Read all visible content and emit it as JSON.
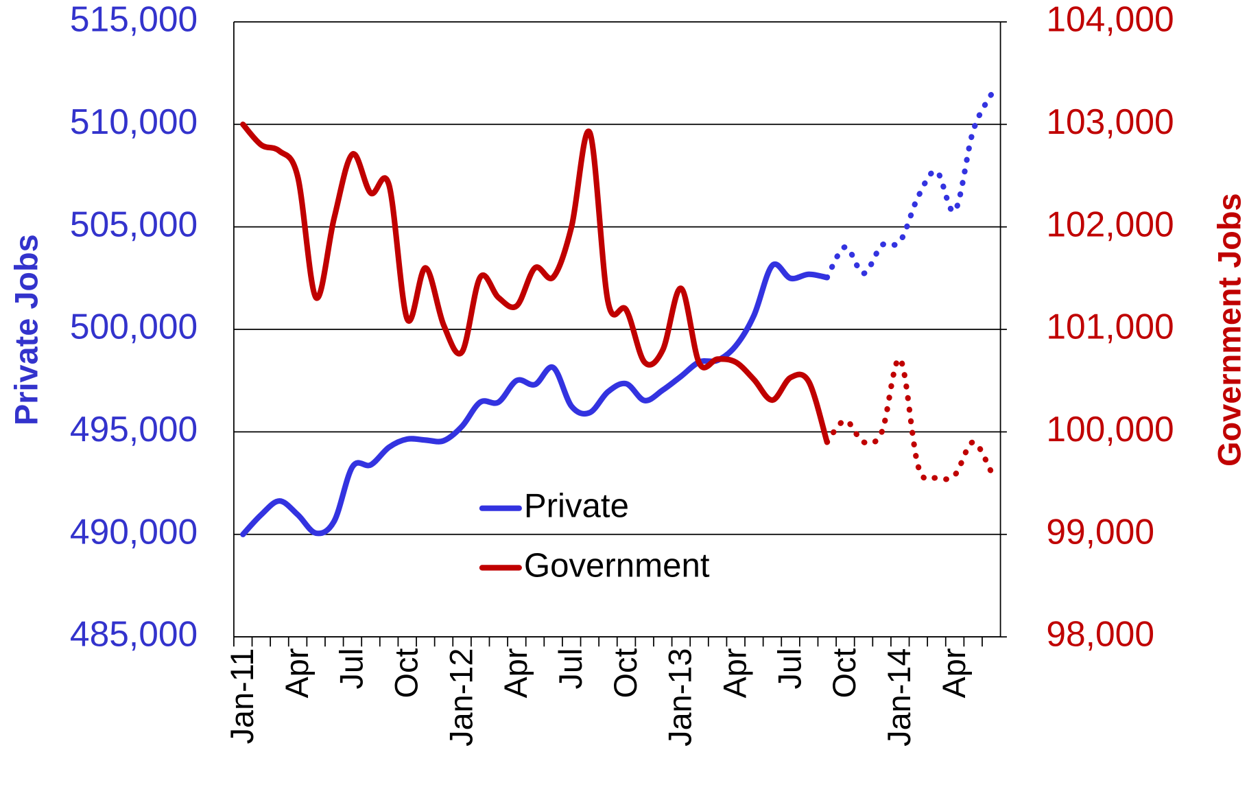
{
  "chart_data": {
    "type": "line",
    "y_title": "Private Jobs",
    "y2_title": "Government Jobs",
    "categories": [
      "Jan-11",
      null,
      null,
      "Apr",
      null,
      null,
      "Jul",
      null,
      null,
      "Oct",
      null,
      null,
      "Jan-12",
      null,
      null,
      "Apr",
      null,
      null,
      "Jul",
      null,
      null,
      "Oct",
      null,
      null,
      "Jan-13",
      null,
      null,
      "Apr",
      null,
      null,
      "Jul",
      null,
      null,
      "Oct",
      null,
      null,
      "Jan-14",
      null,
      null,
      "Apr",
      null,
      null
    ],
    "ylim": [
      485000,
      515000
    ],
    "yticks": [
      {
        "value": 485000,
        "label": "485,000"
      },
      {
        "value": 490000,
        "label": "490,000"
      },
      {
        "value": 495000,
        "label": "495,000"
      },
      {
        "value": 500000,
        "label": "500,000"
      },
      {
        "value": 505000,
        "label": "505,000"
      },
      {
        "value": 510000,
        "label": "510,000"
      },
      {
        "value": 515000,
        "label": "515,000"
      }
    ],
    "y2lim": [
      98000,
      104000
    ],
    "y2ticks": [
      {
        "value": 98000,
        "label": "98,000"
      },
      {
        "value": 99000,
        "label": "99,000"
      },
      {
        "value": 100000,
        "label": "100,000"
      },
      {
        "value": 101000,
        "label": "101,000"
      },
      {
        "value": 102000,
        "label": "102,000"
      },
      {
        "value": 103000,
        "label": "103,000"
      },
      {
        "value": 104000,
        "label": "104,000"
      }
    ],
    "grid": true,
    "legend": "center",
    "series": [
      {
        "name": "Private",
        "color": "#3333e0",
        "axis": "y",
        "values": [
          490000,
          490960,
          491630,
          490960,
          490060,
          490650,
          493300,
          493390,
          494250,
          494650,
          494600,
          494570,
          495270,
          496450,
          496450,
          497510,
          497310,
          498140,
          496250,
          495940,
          496960,
          497350,
          496530,
          497040,
          497710,
          498410,
          498490,
          499200,
          500690,
          503120,
          502490,
          502690,
          502530,
          null,
          null,
          null,
          null,
          null,
          null,
          null,
          null,
          null
        ],
        "projected_values": [
          null,
          null,
          null,
          null,
          null,
          null,
          null,
          null,
          null,
          null,
          null,
          null,
          null,
          null,
          null,
          null,
          null,
          null,
          null,
          null,
          null,
          null,
          null,
          null,
          null,
          null,
          null,
          null,
          null,
          null,
          null,
          null,
          502530,
          504020,
          502730,
          504100,
          504290,
          506490,
          507710,
          505780,
          509670,
          511470
        ]
      },
      {
        "name": "Government",
        "color": "#c00000",
        "axis": "y2",
        "values": [
          103000,
          102800,
          102740,
          102490,
          101310,
          102090,
          102710,
          102330,
          102410,
          101100,
          101600,
          101040,
          100780,
          101510,
          101310,
          101230,
          101600,
          101510,
          102000,
          102920,
          101270,
          101190,
          100680,
          100800,
          101400,
          100670,
          100710,
          100680,
          100510,
          100310,
          100530,
          100490,
          99900,
          null,
          null,
          null,
          null,
          null,
          null,
          null,
          null,
          null
        ],
        "projected_values": [
          null,
          null,
          null,
          null,
          null,
          null,
          null,
          null,
          null,
          null,
          null,
          null,
          null,
          null,
          null,
          null,
          null,
          null,
          null,
          null,
          null,
          null,
          null,
          null,
          null,
          null,
          null,
          null,
          null,
          null,
          null,
          null,
          99900,
          100110,
          99900,
          100000,
          100710,
          99660,
          99550,
          99580,
          99900,
          99610
        ]
      }
    ]
  }
}
